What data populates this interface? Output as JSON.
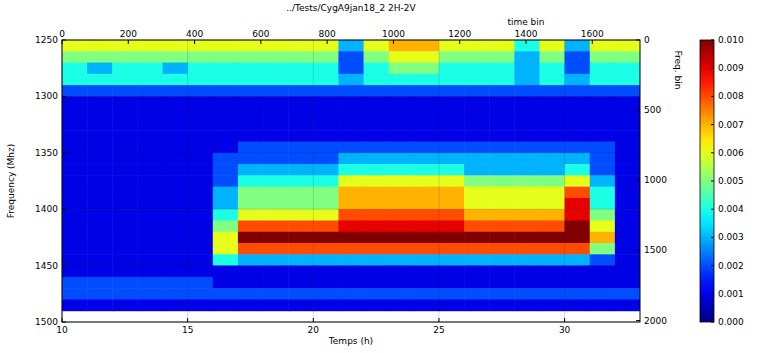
{
  "chart_data": {
    "type": "heatmap",
    "title": "../Tests/CygA9jan18_2 2H-2V",
    "x_label": "Temps (h)",
    "y_label": "Frequency (Mhz)",
    "x2_label": "time bin",
    "y2_label": "Freq. bin",
    "xlim": [
      10,
      33
    ],
    "xticks": [
      10,
      15,
      20,
      25,
      30
    ],
    "ylim": [
      1500,
      1250
    ],
    "yticks": [
      1250,
      1300,
      1350,
      1400,
      1450,
      1500
    ],
    "x2lim": [
      0,
      1744
    ],
    "x2ticks": [
      0,
      200,
      400,
      600,
      800,
      1000,
      1200,
      1400,
      1600
    ],
    "y2lim": [
      2010,
      0
    ],
    "y2ticks": [
      0,
      500,
      1000,
      1500,
      2000
    ],
    "grid": true,
    "x": [
      10.5,
      11.5,
      12.5,
      13.5,
      14.5,
      15.5,
      16.5,
      17.5,
      18.5,
      19.5,
      20.5,
      21.5,
      22.5,
      23.5,
      24.5,
      25.5,
      26.5,
      27.5,
      28.5,
      29.5,
      30.5,
      31.5,
      32.5
    ],
    "y": [
      1255,
      1265,
      1275,
      1285,
      1295,
      1305,
      1315,
      1325,
      1335,
      1345,
      1355,
      1365,
      1375,
      1385,
      1395,
      1405,
      1415,
      1425,
      1435,
      1445,
      1455,
      1465,
      1475,
      1485
    ],
    "values": [
      [
        0.006,
        0.006,
        0.006,
        0.006,
        0.006,
        0.006,
        0.006,
        0.006,
        0.006,
        0.006,
        0.006,
        0.003,
        0.006,
        0.007,
        0.007,
        0.006,
        0.006,
        0.006,
        0.004,
        0.006,
        0.003,
        0.006,
        0.006
      ],
      [
        0.005,
        0.005,
        0.005,
        0.005,
        0.005,
        0.005,
        0.005,
        0.005,
        0.005,
        0.005,
        0.005,
        0.002,
        0.005,
        0.006,
        0.006,
        0.005,
        0.005,
        0.005,
        0.003,
        0.005,
        0.002,
        0.005,
        0.005
      ],
      [
        0.004,
        0.003,
        0.004,
        0.004,
        0.003,
        0.004,
        0.004,
        0.004,
        0.004,
        0.004,
        0.004,
        0.002,
        0.004,
        0.005,
        0.005,
        0.004,
        0.004,
        0.004,
        0.003,
        0.004,
        0.002,
        0.004,
        0.004
      ],
      [
        0.004,
        0.004,
        0.004,
        0.004,
        0.004,
        0.004,
        0.004,
        0.004,
        0.004,
        0.004,
        0.004,
        0.003,
        0.004,
        0.004,
        0.004,
        0.004,
        0.004,
        0.004,
        0.003,
        0.004,
        0.003,
        0.004,
        0.004
      ],
      [
        0.002,
        0.002,
        0.002,
        0.002,
        0.002,
        0.002,
        0.002,
        0.002,
        0.002,
        0.002,
        0.002,
        0.002,
        0.002,
        0.002,
        0.002,
        0.002,
        0.002,
        0.002,
        0.002,
        0.002,
        0.002,
        0.002,
        0.002
      ],
      [
        0.001,
        0.001,
        0.001,
        0.001,
        0.001,
        0.001,
        0.001,
        0.001,
        0.001,
        0.001,
        0.001,
        0.001,
        0.001,
        0.001,
        0.001,
        0.001,
        0.001,
        0.001,
        0.001,
        0.001,
        0.001,
        0.001,
        0.001
      ],
      [
        0.001,
        0.001,
        0.001,
        0.001,
        0.001,
        0.001,
        0.001,
        0.001,
        0.001,
        0.001,
        0.001,
        0.001,
        0.001,
        0.001,
        0.001,
        0.001,
        0.001,
        0.001,
        0.001,
        0.001,
        0.001,
        0.001,
        0.001
      ],
      [
        0.001,
        0.001,
        0.001,
        0.001,
        0.001,
        0.001,
        0.001,
        0.001,
        0.001,
        0.001,
        0.001,
        0.001,
        0.001,
        0.001,
        0.001,
        0.001,
        0.001,
        0.001,
        0.001,
        0.001,
        0.001,
        0.001,
        0.001
      ],
      [
        0.001,
        0.001,
        0.001,
        0.001,
        0.001,
        0.001,
        0.001,
        0.001,
        0.001,
        0.001,
        0.001,
        0.001,
        0.001,
        0.001,
        0.001,
        0.001,
        0.001,
        0.001,
        0.001,
        0.001,
        0.001,
        0.001,
        0.001
      ],
      [
        0.001,
        0.001,
        0.001,
        0.001,
        0.001,
        0.001,
        0.001,
        0.002,
        0.002,
        0.002,
        0.002,
        0.002,
        0.002,
        0.002,
        0.002,
        0.002,
        0.002,
        0.002,
        0.002,
        0.002,
        0.002,
        0.002,
        0.001
      ],
      [
        0.001,
        0.001,
        0.001,
        0.001,
        0.001,
        0.001,
        0.002,
        0.002,
        0.002,
        0.002,
        0.002,
        0.003,
        0.003,
        0.003,
        0.003,
        0.003,
        0.003,
        0.003,
        0.003,
        0.003,
        0.003,
        0.002,
        0.001
      ],
      [
        0.001,
        0.001,
        0.001,
        0.001,
        0.001,
        0.001,
        0.002,
        0.003,
        0.003,
        0.003,
        0.003,
        0.004,
        0.004,
        0.004,
        0.004,
        0.004,
        0.003,
        0.003,
        0.003,
        0.003,
        0.004,
        0.002,
        0.001
      ],
      [
        0.001,
        0.001,
        0.001,
        0.001,
        0.001,
        0.001,
        0.002,
        0.004,
        0.004,
        0.004,
        0.004,
        0.006,
        0.006,
        0.006,
        0.006,
        0.006,
        0.005,
        0.005,
        0.005,
        0.005,
        0.006,
        0.003,
        0.001
      ],
      [
        0.001,
        0.001,
        0.001,
        0.001,
        0.001,
        0.001,
        0.003,
        0.005,
        0.005,
        0.005,
        0.005,
        0.007,
        0.007,
        0.007,
        0.007,
        0.007,
        0.006,
        0.006,
        0.006,
        0.006,
        0.008,
        0.004,
        0.001
      ],
      [
        0.001,
        0.001,
        0.001,
        0.001,
        0.001,
        0.001,
        0.003,
        0.005,
        0.005,
        0.005,
        0.005,
        0.007,
        0.007,
        0.007,
        0.007,
        0.007,
        0.006,
        0.006,
        0.006,
        0.006,
        0.009,
        0.004,
        0.001
      ],
      [
        0.001,
        0.001,
        0.001,
        0.001,
        0.001,
        0.001,
        0.004,
        0.006,
        0.006,
        0.006,
        0.006,
        0.008,
        0.008,
        0.008,
        0.008,
        0.008,
        0.007,
        0.007,
        0.007,
        0.007,
        0.009,
        0.005,
        0.001
      ],
      [
        0.001,
        0.001,
        0.001,
        0.001,
        0.001,
        0.001,
        0.005,
        0.008,
        0.008,
        0.008,
        0.008,
        0.009,
        0.009,
        0.009,
        0.009,
        0.009,
        0.008,
        0.008,
        0.008,
        0.008,
        0.01,
        0.006,
        0.001
      ],
      [
        0.001,
        0.001,
        0.001,
        0.001,
        0.001,
        0.001,
        0.006,
        0.01,
        0.01,
        0.01,
        0.01,
        0.01,
        0.01,
        0.01,
        0.01,
        0.01,
        0.01,
        0.01,
        0.01,
        0.01,
        0.01,
        0.007,
        0.001
      ],
      [
        0.001,
        0.001,
        0.001,
        0.001,
        0.001,
        0.001,
        0.006,
        0.008,
        0.008,
        0.008,
        0.008,
        0.008,
        0.008,
        0.008,
        0.008,
        0.008,
        0.008,
        0.008,
        0.008,
        0.008,
        0.008,
        0.005,
        0.001
      ],
      [
        0.001,
        0.001,
        0.001,
        0.001,
        0.001,
        0.001,
        0.004,
        0.003,
        0.003,
        0.003,
        0.003,
        0.003,
        0.003,
        0.003,
        0.003,
        0.003,
        0.003,
        0.003,
        0.003,
        0.003,
        0.003,
        0.002,
        0.001
      ],
      [
        0.001,
        0.001,
        0.001,
        0.001,
        0.001,
        0.001,
        0.001,
        0.001,
        0.001,
        0.001,
        0.001,
        0.001,
        0.001,
        0.001,
        0.001,
        0.001,
        0.001,
        0.001,
        0.001,
        0.001,
        0.001,
        0.001,
        0.001
      ],
      [
        0.002,
        0.002,
        0.002,
        0.002,
        0.002,
        0.002,
        0.001,
        0.001,
        0.001,
        0.001,
        0.001,
        0.001,
        0.001,
        0.001,
        0.001,
        0.001,
        0.001,
        0.001,
        0.001,
        0.001,
        0.001,
        0.001,
        0.001
      ],
      [
        0.002,
        0.002,
        0.002,
        0.002,
        0.002,
        0.002,
        0.002,
        0.002,
        0.002,
        0.002,
        0.002,
        0.002,
        0.002,
        0.002,
        0.002,
        0.002,
        0.002,
        0.002,
        0.002,
        0.002,
        0.002,
        0.002,
        0.002
      ],
      [
        0.001,
        0.001,
        0.001,
        0.001,
        0.001,
        0.001,
        0.001,
        0.001,
        0.001,
        0.001,
        0.001,
        0.001,
        0.001,
        0.001,
        0.001,
        0.001,
        0.001,
        0.001,
        0.001,
        0.001,
        0.001,
        0.001,
        0.001
      ]
    ],
    "colorbar_range": [
      0,
      0.01
    ],
    "colorbar_ticks": [
      {
        "value": 0,
        "label": "0.000"
      },
      {
        "value": 0.001,
        "label": "0.001"
      },
      {
        "value": 0.002,
        "label": "0.002"
      },
      {
        "value": 0.003,
        "label": "0.003"
      },
      {
        "value": 0.004,
        "label": "0.004"
      },
      {
        "value": 0.005,
        "label": "0.005"
      },
      {
        "value": 0.006,
        "label": "0.006"
      },
      {
        "value": 0.007,
        "label": "0.007"
      },
      {
        "value": 0.008,
        "label": "0.008"
      },
      {
        "value": 0.009,
        "label": "0.009"
      },
      {
        "value": 0.01,
        "label": "0.010"
      }
    ]
  }
}
